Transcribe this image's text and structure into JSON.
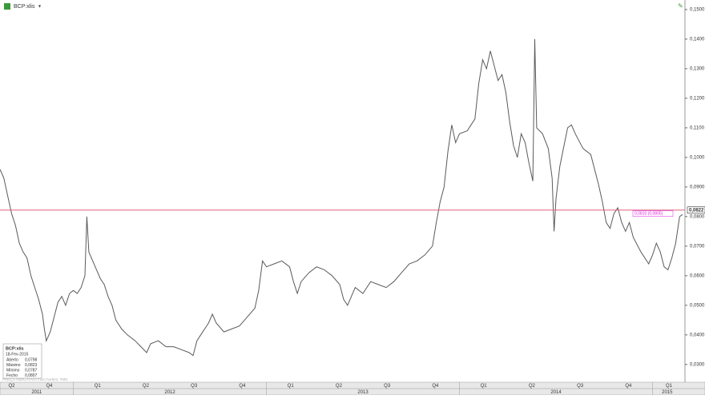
{
  "chart_data": {
    "type": "line",
    "title": "BCP:xlis",
    "footer": "PREÇO INDICATIVO   Fuso horário: TMG",
    "series": [
      {
        "color": "#5a5a5a",
        "x": [
          2011.62,
          2011.64,
          2011.66,
          2011.68,
          2011.7,
          2011.72,
          2011.74,
          2011.76,
          2011.78,
          2011.8,
          2011.82,
          2011.84,
          2011.85,
          2011.86,
          2011.88,
          2011.9,
          2011.92,
          2011.94,
          2011.96,
          2011.98,
          2012.0,
          2012.02,
          2012.04,
          2012.06,
          2012.07,
          2012.08,
          2012.1,
          2012.12,
          2012.14,
          2012.16,
          2012.18,
          2012.2,
          2012.22,
          2012.25,
          2012.28,
          2012.32,
          2012.35,
          2012.38,
          2012.4,
          2012.44,
          2012.48,
          2012.52,
          2012.56,
          2012.6,
          2012.62,
          2012.64,
          2012.66,
          2012.7,
          2012.72,
          2012.74,
          2012.78,
          2012.82,
          2012.86,
          2012.9,
          2012.94,
          2012.96,
          2012.98,
          2013.0,
          2013.04,
          2013.08,
          2013.12,
          2013.14,
          2013.16,
          2013.18,
          2013.22,
          2013.26,
          2013.3,
          2013.34,
          2013.38,
          2013.4,
          2013.42,
          2013.46,
          2013.5,
          2013.54,
          2013.58,
          2013.62,
          2013.66,
          2013.7,
          2013.74,
          2013.78,
          2013.82,
          2013.86,
          2013.88,
          2013.9,
          2013.92,
          2013.94,
          2013.96,
          2013.98,
          2014.0,
          2014.04,
          2014.06,
          2014.08,
          2014.1,
          2014.12,
          2014.14,
          2014.16,
          2014.18,
          2014.2,
          2014.22,
          2014.24,
          2014.26,
          2014.28,
          2014.3,
          2014.32,
          2014.34,
          2014.36,
          2014.38,
          2014.39,
          2014.4,
          2014.43,
          2014.46,
          2014.48,
          2014.49,
          2014.5,
          2014.52,
          2014.56,
          2014.58,
          2014.6,
          2014.64,
          2014.68,
          2014.7,
          2014.72,
          2014.74,
          2014.76,
          2014.78,
          2014.8,
          2014.82,
          2014.84,
          2014.86,
          2014.88,
          2014.9,
          2014.94,
          2014.98,
          2015.0,
          2015.02,
          2015.04,
          2015.06,
          2015.08,
          2015.1,
          2015.12,
          2015.14,
          2015.155
        ],
        "values": [
          0.096,
          0.093,
          0.087,
          0.081,
          0.077,
          0.071,
          0.068,
          0.066,
          0.06,
          0.056,
          0.052,
          0.047,
          0.042,
          0.038,
          0.041,
          0.046,
          0.051,
          0.053,
          0.05,
          0.054,
          0.055,
          0.054,
          0.056,
          0.06,
          0.08,
          0.068,
          0.065,
          0.062,
          0.059,
          0.057,
          0.053,
          0.05,
          0.045,
          0.042,
          0.04,
          0.038,
          0.036,
          0.034,
          0.037,
          0.038,
          0.036,
          0.036,
          0.035,
          0.034,
          0.033,
          0.038,
          0.04,
          0.044,
          0.047,
          0.044,
          0.041,
          0.042,
          0.043,
          0.046,
          0.049,
          0.055,
          0.065,
          0.063,
          0.064,
          0.065,
          0.063,
          0.058,
          0.054,
          0.058,
          0.061,
          0.063,
          0.062,
          0.06,
          0.057,
          0.052,
          0.05,
          0.056,
          0.054,
          0.058,
          0.057,
          0.056,
          0.058,
          0.061,
          0.064,
          0.065,
          0.067,
          0.07,
          0.078,
          0.085,
          0.09,
          0.102,
          0.111,
          0.105,
          0.108,
          0.109,
          0.111,
          0.113,
          0.125,
          0.133,
          0.13,
          0.136,
          0.131,
          0.126,
          0.128,
          0.122,
          0.112,
          0.104,
          0.1,
          0.108,
          0.105,
          0.098,
          0.092,
          0.14,
          0.11,
          0.108,
          0.103,
          0.093,
          0.075,
          0.086,
          0.097,
          0.11,
          0.111,
          0.108,
          0.103,
          0.101,
          0.096,
          0.091,
          0.085,
          0.078,
          0.076,
          0.081,
          0.083,
          0.078,
          0.075,
          0.078,
          0.073,
          0.068,
          0.064,
          0.067,
          0.071,
          0.068,
          0.063,
          0.062,
          0.066,
          0.071,
          0.08,
          0.0807
        ]
      }
    ],
    "xlim": [
      2011.62,
      2015.168
    ],
    "ylim": [
      0.024,
      0.1516
    ],
    "yticks": [
      {
        "value": 0.15,
        "label": "0,1500"
      },
      {
        "value": 0.14,
        "label": "0,1400"
      },
      {
        "value": 0.13,
        "label": "0,1300"
      },
      {
        "value": 0.12,
        "label": "0,1200"
      },
      {
        "value": 0.11,
        "label": "0,1100"
      },
      {
        "value": 0.1,
        "label": "0,1000"
      },
      {
        "value": 0.09,
        "label": "0,0900"
      },
      {
        "value": 0.08,
        "label": "0,0800"
      },
      {
        "value": 0.07,
        "label": "0,0700"
      },
      {
        "value": 0.06,
        "label": "0,0600"
      },
      {
        "value": 0.05,
        "label": "0,0500"
      },
      {
        "value": 0.04,
        "label": "0,0400"
      },
      {
        "value": 0.03,
        "label": "0,0300"
      }
    ],
    "xticks": [
      {
        "value": 2011.68,
        "label": "Q2"
      },
      {
        "value": 2011.875,
        "label": "Q4"
      },
      {
        "value": 2012.125,
        "label": "Q1"
      },
      {
        "value": 2012.375,
        "label": "Q2"
      },
      {
        "value": 2012.625,
        "label": "Q3"
      },
      {
        "value": 2012.875,
        "label": "Q4"
      },
      {
        "value": 2013.125,
        "label": "Q1"
      },
      {
        "value": 2013.375,
        "label": "Q2"
      },
      {
        "value": 2013.625,
        "label": "Q3"
      },
      {
        "value": 2013.875,
        "label": "Q4"
      },
      {
        "value": 2014.125,
        "label": "Q1"
      },
      {
        "value": 2014.375,
        "label": "Q2"
      },
      {
        "value": 2014.625,
        "label": "Q3"
      },
      {
        "value": 2014.875,
        "label": "Q4"
      },
      {
        "value": 2015.085,
        "label": "Q1"
      }
    ],
    "year_ticks": [
      {
        "value": 2011.81,
        "label": "2011"
      },
      {
        "value": 2012.5,
        "label": "2012"
      },
      {
        "value": 2013.5,
        "label": "2013"
      },
      {
        "value": 2014.5,
        "label": "2014"
      },
      {
        "value": 2015.076,
        "label": "2015"
      }
    ],
    "ref_line": {
      "value": 0.0822,
      "label": "0,0822",
      "color": "#e0607a"
    },
    "annotation": {
      "value": 0.081,
      "label": "0,0810 (0,0805)",
      "color": "#e020e0"
    },
    "info": {
      "title": "BCP:xlis",
      "date": "18-Fev-2015",
      "rows": [
        [
          "Aberto",
          "0,0798"
        ],
        [
          "Máximo",
          "0,0823"
        ],
        [
          "Mínimo",
          "0,0787"
        ],
        [
          "Fecho",
          "0,0807"
        ]
      ]
    }
  }
}
